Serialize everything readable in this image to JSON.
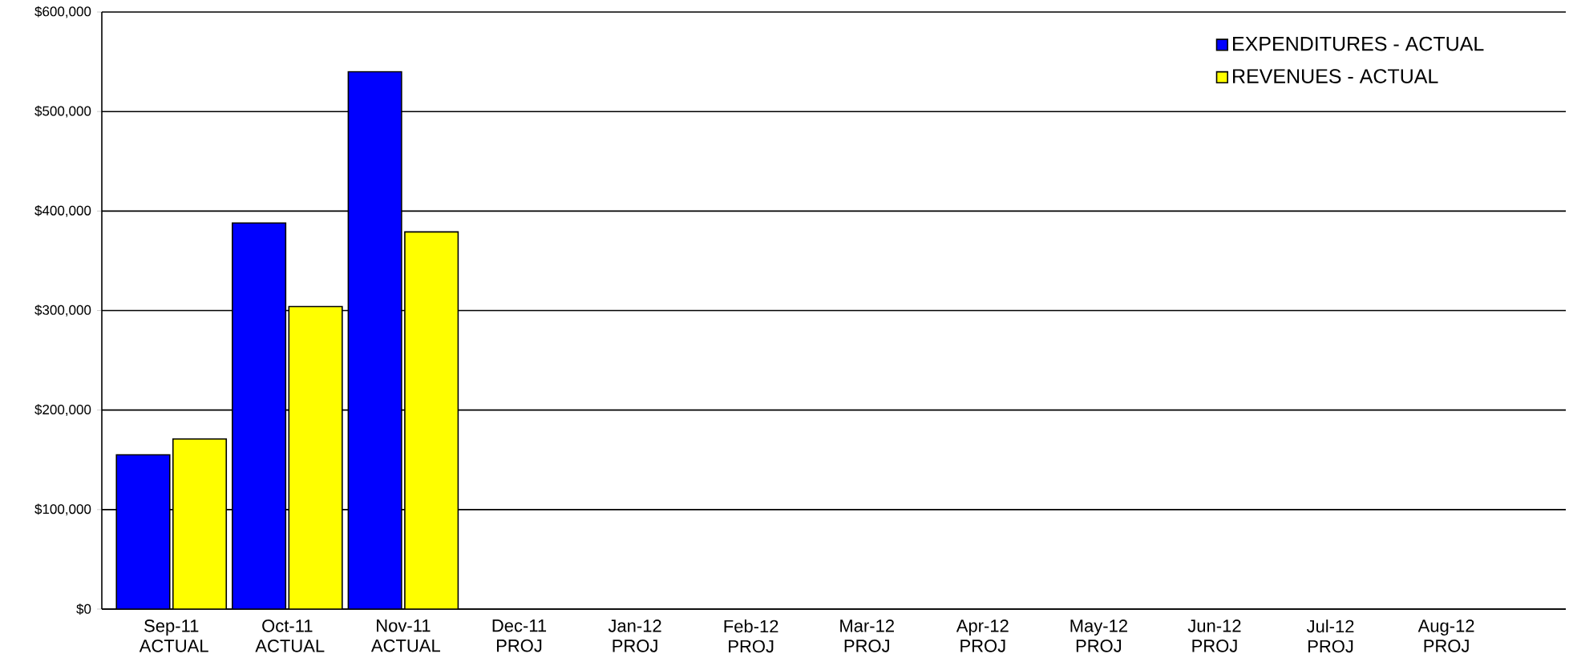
{
  "chart_data": {
    "type": "bar",
    "categories": [
      "Sep-11 ACTUAL",
      "Oct-11 ACTUAL",
      "Nov-11 ACTUAL",
      "Dec-11 PROJ",
      "Jan-12 PROJ",
      "Feb-12 PROJ",
      "Mar-12 PROJ",
      "Apr-12 PROJ",
      "May-12 PROJ",
      "Jun-12 PROJ",
      "Jul-12 PROJ",
      "Aug-12 PROJ"
    ],
    "series": [
      {
        "name": "EXPENDITURES - ACTUAL",
        "color": "#0000ff",
        "values": [
          155000,
          388000,
          540000,
          null,
          null,
          null,
          null,
          null,
          null,
          null,
          null,
          null
        ]
      },
      {
        "name": "REVENUES - ACTUAL",
        "color": "#ffff00",
        "values": [
          171000,
          304000,
          379000,
          null,
          null,
          null,
          null,
          null,
          null,
          null,
          null,
          null
        ]
      }
    ],
    "ylim": [
      0,
      600000
    ],
    "yticks": [
      {
        "value": 0,
        "label": "$0"
      },
      {
        "value": 100000,
        "label": "$100,000"
      },
      {
        "value": 200000,
        "label": "$200,000"
      },
      {
        "value": 300000,
        "label": "$300,000"
      },
      {
        "value": 400000,
        "label": "$400,000"
      },
      {
        "value": 500000,
        "label": "$500,000"
      },
      {
        "value": 600000,
        "label": "$600,000"
      }
    ],
    "grid": "y",
    "legend": "top right"
  }
}
